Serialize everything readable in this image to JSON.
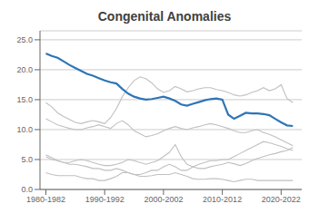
{
  "chart_data": {
    "type": "line",
    "title": "Congenital Anomalies",
    "x": [
      1980,
      1981,
      1982,
      1983,
      1984,
      1985,
      1986,
      1987,
      1988,
      1989,
      1990,
      1991,
      1992,
      1993,
      1994,
      1995,
      1996,
      1997,
      1998,
      1999,
      2000,
      2001,
      2002,
      2003,
      2004,
      2005,
      2006,
      2007,
      2008,
      2009,
      2010,
      2011,
      2012,
      2013,
      2014,
      2015,
      2016,
      2017,
      2018,
      2019,
      2020,
      2021,
      2022
    ],
    "series": [
      {
        "color": "#C0C0C0",
        "values": [
          14.5,
          13.8,
          12.8,
          12.2,
          11.7,
          11.2,
          11.0,
          11.3,
          11.5,
          11.3,
          11.0,
          12.0,
          13.5,
          15.5,
          17.0,
          18.2,
          18.8,
          18.5,
          17.8,
          16.8,
          16.2,
          16.5,
          17.2,
          16.8,
          16.3,
          16.5,
          16.8,
          17.0,
          17.0,
          16.7,
          16.5,
          16.2,
          15.8,
          15.6,
          15.8,
          16.2,
          16.5,
          17.0,
          16.5,
          16.8,
          17.5,
          15.2,
          14.5
        ]
      },
      {
        "color": "#C0C0C0",
        "values": [
          11.8,
          11.3,
          10.8,
          10.5,
          10.2,
          10.0,
          10.0,
          10.3,
          10.5,
          10.8,
          10.5,
          10.2,
          11.0,
          11.5,
          10.8,
          9.8,
          9.3,
          8.8,
          9.0,
          9.3,
          9.8,
          10.2,
          10.5,
          10.2,
          10.0,
          10.3,
          10.5,
          10.8,
          11.0,
          10.8,
          10.5,
          10.2,
          9.8,
          9.5,
          9.5,
          9.8,
          10.0,
          9.5,
          9.2,
          8.8,
          8.3,
          7.8,
          7.3
        ]
      },
      {
        "color": "#C0C0C0",
        "values": [
          5.5,
          5.0,
          4.8,
          4.5,
          4.5,
          4.8,
          5.0,
          4.8,
          4.5,
          4.2,
          4.0,
          4.0,
          4.2,
          4.5,
          5.0,
          4.8,
          4.5,
          4.2,
          4.5,
          4.8,
          5.5,
          6.2,
          7.5,
          5.5,
          4.2,
          3.8,
          3.5,
          3.5,
          3.8,
          4.0,
          4.2,
          4.5,
          4.3,
          4.0,
          4.3,
          4.8,
          5.2,
          5.5,
          5.8,
          6.0,
          6.3,
          6.5,
          7.0
        ]
      },
      {
        "color": "#C0C0C0",
        "values": [
          5.8,
          5.3,
          4.8,
          4.5,
          4.2,
          4.2,
          4.0,
          3.8,
          3.5,
          3.5,
          3.2,
          3.2,
          3.5,
          3.2,
          2.8,
          2.5,
          2.5,
          2.8,
          3.2,
          3.2,
          3.8,
          4.2,
          3.8,
          3.2,
          3.2,
          3.8,
          4.2,
          4.5,
          4.8,
          4.8,
          5.0,
          5.0,
          5.5,
          6.0,
          6.5,
          7.0,
          7.5,
          8.0,
          7.8,
          7.5,
          7.2,
          6.8,
          6.5
        ]
      },
      {
        "color": "#C0C0C0",
        "values": [
          2.8,
          2.5,
          2.3,
          2.3,
          2.3,
          2.3,
          2.0,
          1.8,
          1.8,
          1.5,
          1.5,
          1.8,
          2.2,
          2.8,
          2.8,
          2.5,
          2.2,
          2.2,
          2.3,
          2.5,
          2.5,
          2.5,
          2.8,
          2.5,
          2.2,
          1.8,
          1.7,
          1.7,
          1.8,
          1.8,
          1.7,
          1.5,
          1.3,
          1.5,
          1.7,
          1.7,
          1.5,
          1.5,
          1.5,
          1.5,
          1.5,
          1.5,
          1.5
        ]
      },
      {
        "color": "#2E75B6",
        "values": [
          22.7,
          22.3,
          22.0,
          21.4,
          20.8,
          20.3,
          19.8,
          19.3,
          19.0,
          18.6,
          18.2,
          17.9,
          17.7,
          16.8,
          16.0,
          15.5,
          15.2,
          15.0,
          15.1,
          15.3,
          15.5,
          15.2,
          14.8,
          14.2,
          14.0,
          14.3,
          14.6,
          14.9,
          15.1,
          15.2,
          15.0,
          12.5,
          11.8,
          12.3,
          12.8,
          12.7,
          12.7,
          12.6,
          12.4,
          11.8,
          11.2,
          10.7,
          10.6
        ]
      }
    ],
    "xlim": [
      1979.0,
      2023.5
    ],
    "xticks": [
      {
        "value": 1980,
        "label": "1980-1982"
      },
      {
        "value": 1990,
        "label": "1990-1992"
      },
      {
        "value": 2000,
        "label": "2000-2002"
      },
      {
        "value": 2010,
        "label": "2010-2012"
      },
      {
        "value": 2020,
        "label": "2020-2022"
      }
    ],
    "ylim": [
      0.0,
      26.5
    ],
    "yticks": [
      {
        "value": 0,
        "label": "0.0"
      },
      {
        "value": 5,
        "label": "5.0"
      },
      {
        "value": 10,
        "label": "10.0"
      },
      {
        "value": 15,
        "label": "15.0"
      },
      {
        "value": 20,
        "label": "20.0"
      },
      {
        "value": 25,
        "label": "25.0"
      }
    ],
    "grid": true
  }
}
